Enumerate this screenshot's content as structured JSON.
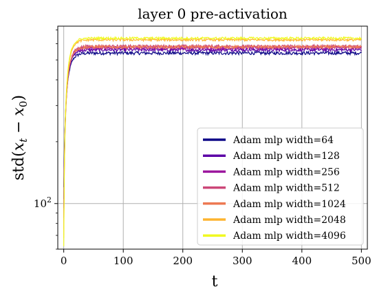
{
  "chart_data": {
    "type": "line",
    "title": "layer 0 pre-activation",
    "xlabel": "t",
    "ylabel": "std(x_t − x_0)",
    "ylabel_parts": {
      "base": "std(",
      "x": "x",
      "t": "t",
      "minus": " − ",
      "x0": "x",
      "zero": "0",
      "close": ")"
    },
    "xlim": [
      -10,
      510
    ],
    "ylim": [
      60,
      730
    ],
    "yscale": "log",
    "grid": true,
    "legend_position": "lower-right",
    "x_ticks": [
      0,
      100,
      200,
      300,
      400,
      500
    ],
    "x_tick_labels": [
      "0",
      "100",
      "200",
      "300",
      "400",
      "500"
    ],
    "y_major_ticks": [
      100
    ],
    "y_tick_labels": [
      {
        "base": "10",
        "exp": "2"
      }
    ],
    "y_minor_ticks": [
      60,
      70,
      80,
      90,
      200,
      300,
      400,
      500,
      600,
      700
    ],
    "curve": {
      "start_t": 0,
      "end_t": 500,
      "time_constant": 6.5
    },
    "series": [
      {
        "name": "Adam mlp width=64",
        "color": "#0d0887",
        "start": 120,
        "plateau": 540,
        "noise": 10
      },
      {
        "name": "Adam mlp width=128",
        "color": "#5c01a6",
        "start": 105,
        "plateau": 560,
        "noise": 10
      },
      {
        "name": "Adam mlp width=256",
        "color": "#9c179e",
        "start": 95,
        "plateau": 572,
        "noise": 10
      },
      {
        "name": "Adam mlp width=512",
        "color": "#cc4778",
        "start": 85,
        "plateau": 582,
        "noise": 10
      },
      {
        "name": "Adam mlp width=1024",
        "color": "#ed7953",
        "start": 75,
        "plateau": 578,
        "noise": 10
      },
      {
        "name": "Adam mlp width=2048",
        "color": "#fdb42f",
        "start": 68,
        "plateau": 626,
        "noise": 8
      },
      {
        "name": "Adam mlp width=4096",
        "color": "#f0f921",
        "start": 62,
        "plateau": 638,
        "noise": 8
      }
    ]
  }
}
